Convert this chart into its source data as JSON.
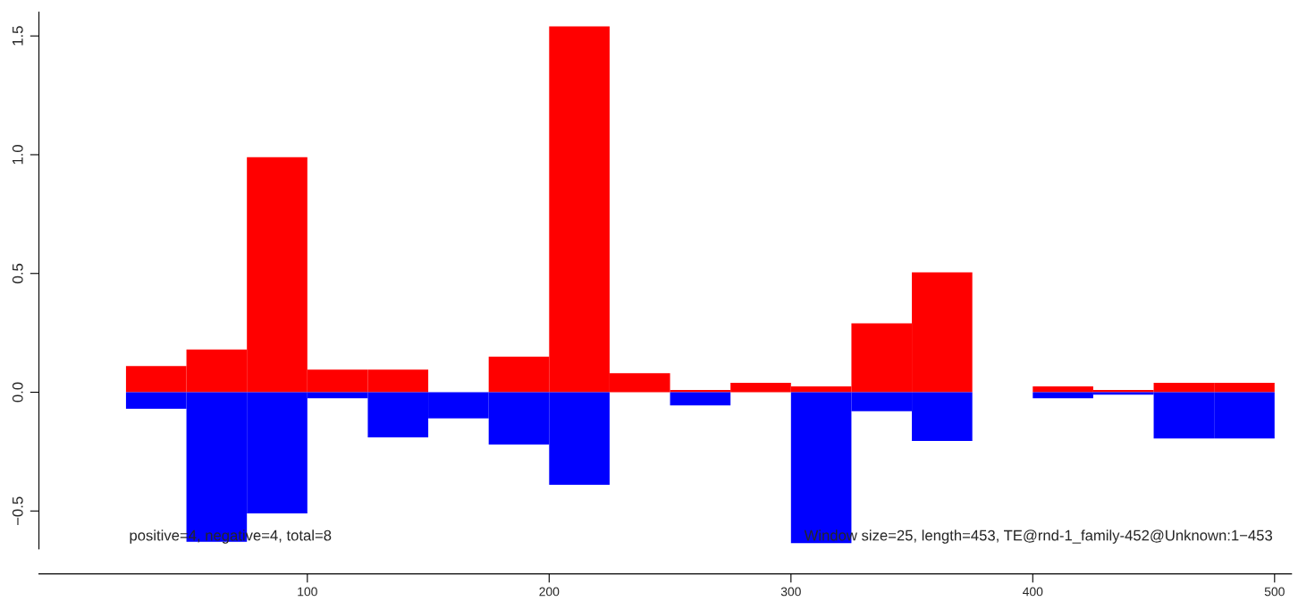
{
  "chart_data": {
    "type": "bar",
    "stacked": true,
    "x": [
      37.5,
      62.5,
      87.5,
      112.5,
      137.5,
      162.5,
      187.5,
      212.5,
      237.5,
      262.5,
      287.5,
      312.5,
      337.5,
      362.5,
      387.5,
      412.5,
      437.5,
      462.5,
      487.5
    ],
    "series": [
      {
        "color": "#ff0000",
        "values": [
          0.11,
          0.18,
          0.99,
          0.095,
          0.095,
          0,
          0.15,
          1.54,
          0.08,
          0.01,
          0.04,
          0.025,
          0.29,
          0.505,
          0,
          0.025,
          0.01,
          0.04,
          0.04
        ]
      },
      {
        "color": "#0000ff",
        "values": [
          -0.07,
          -0.63,
          -0.51,
          -0.025,
          -0.19,
          -0.11,
          -0.22,
          -0.39,
          0,
          -0.055,
          0,
          -0.635,
          -0.08,
          -0.205,
          0,
          -0.025,
          -0.01,
          -0.195,
          -0.195
        ]
      }
    ],
    "xlim": [
      -11,
      507
    ],
    "xticks": [
      100,
      200,
      300,
      400,
      500
    ],
    "ylim": [
      -0.66,
      1.6
    ],
    "yticks": [
      {
        "value": -0.5,
        "label": "−0.5"
      },
      {
        "value": 0,
        "label": "0.0"
      },
      {
        "value": 0.5,
        "label": "0.5"
      },
      {
        "value": 1.0,
        "label": "1.0"
      },
      {
        "value": 1.5,
        "label": "1.5"
      }
    ],
    "grid": false,
    "annotations": [
      "positive=4, negative=4, total=8",
      "Window size=25, length=453, TE@rnd-1_family-452@Unknown:1−453"
    ]
  }
}
